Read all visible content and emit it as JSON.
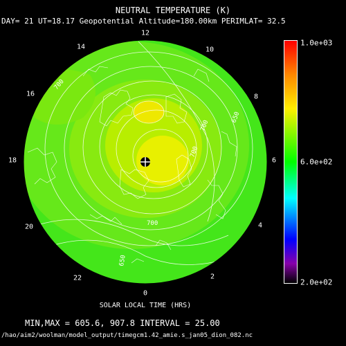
{
  "title": "NEUTRAL TEMPERATURE (K)",
  "subtitle": "DAY= 21 UT=18.17 Geopotential Altitude=180.00km PERIMLAT= 32.5",
  "hour_labels": {
    "h12": "12",
    "h10": "10",
    "h8": "8",
    "h6": "6",
    "h4": "4",
    "h2": "2",
    "h0": "0",
    "h22": "22",
    "h20": "20",
    "h18": "18",
    "h16": "16",
    "h14": "14"
  },
  "contour_labels": [
    "700",
    "700",
    "700",
    "650",
    "700",
    "650"
  ],
  "colorbar": {
    "max": "1.0e+03",
    "mid": "6.0e+02",
    "min": "2.0e+02"
  },
  "xlabel": "SOLAR LOCAL TIME (HRS)",
  "minmax_text": "MIN,MAX =       605.6,      907.8 INTERVAL =       25.00",
  "file_path": "/hao/aim2/woolman/model_output/timegcm1.42_amie.s_jan05_dion_082.nc",
  "colors": {
    "background": "#000000",
    "field_low": "#33e61a",
    "field_high": "#f0f000",
    "contour": "#ffffff"
  }
}
